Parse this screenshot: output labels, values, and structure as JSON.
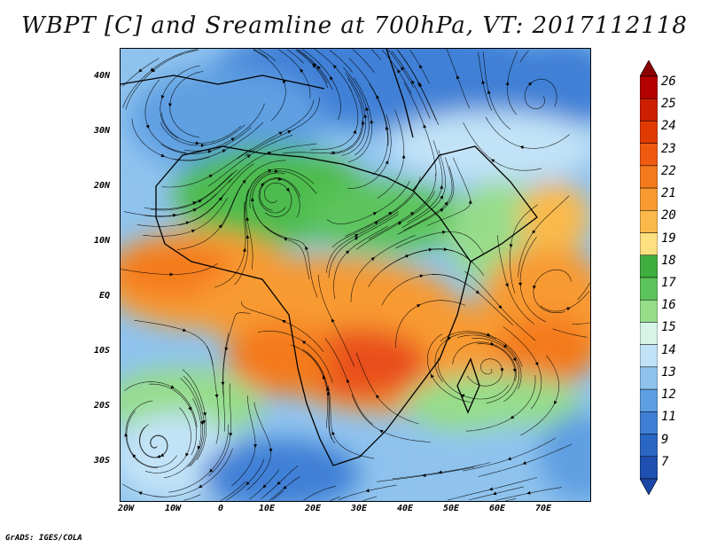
{
  "title": "WBPT [C] and Sreamline at 700hPa, VT: 2017112118",
  "footer": "GrADS: IGES/COLA",
  "lat_labels": [
    "40N",
    "30N",
    "20N",
    "10N",
    "EQ",
    "10S",
    "20S",
    "30S"
  ],
  "lon_labels": [
    "20W",
    "10W",
    "0",
    "10E",
    "20E",
    "30E",
    "40E",
    "50E",
    "60E",
    "70E"
  ],
  "colorbar": {
    "labels": [
      "26",
      "25",
      "24",
      "23",
      "22",
      "21",
      "20",
      "19",
      "18",
      "17",
      "16",
      "15",
      "14",
      "13",
      "12",
      "11",
      "9",
      "7"
    ],
    "colors": [
      "#b30000",
      "#cc1f00",
      "#e03a00",
      "#ee5a10",
      "#f47a1e",
      "#f89a30",
      "#fbb94c",
      "#fde07f",
      "#3fae3f",
      "#5cc45c",
      "#96dd8a",
      "#d6f5e8",
      "#c2e3f7",
      "#8fc3ee",
      "#5e9fe2",
      "#3f80d6",
      "#2a66c4",
      "#1f4fb0"
    ],
    "top_arrow_color": "#8a0000",
    "bottom_arrow_color": "#1a46a6"
  },
  "field_colors": {
    "deep_blue": "#2a66c4",
    "blue": "#5e9fe2",
    "light_blue": "#8fc3ee",
    "pale": "#d6f5e8",
    "light_green": "#96dd8a",
    "green": "#4dbb4d",
    "orange_light": "#fbb94c",
    "orange": "#f89a30",
    "orange_dark": "#f47a1e",
    "red_orange": "#e9501a"
  }
}
